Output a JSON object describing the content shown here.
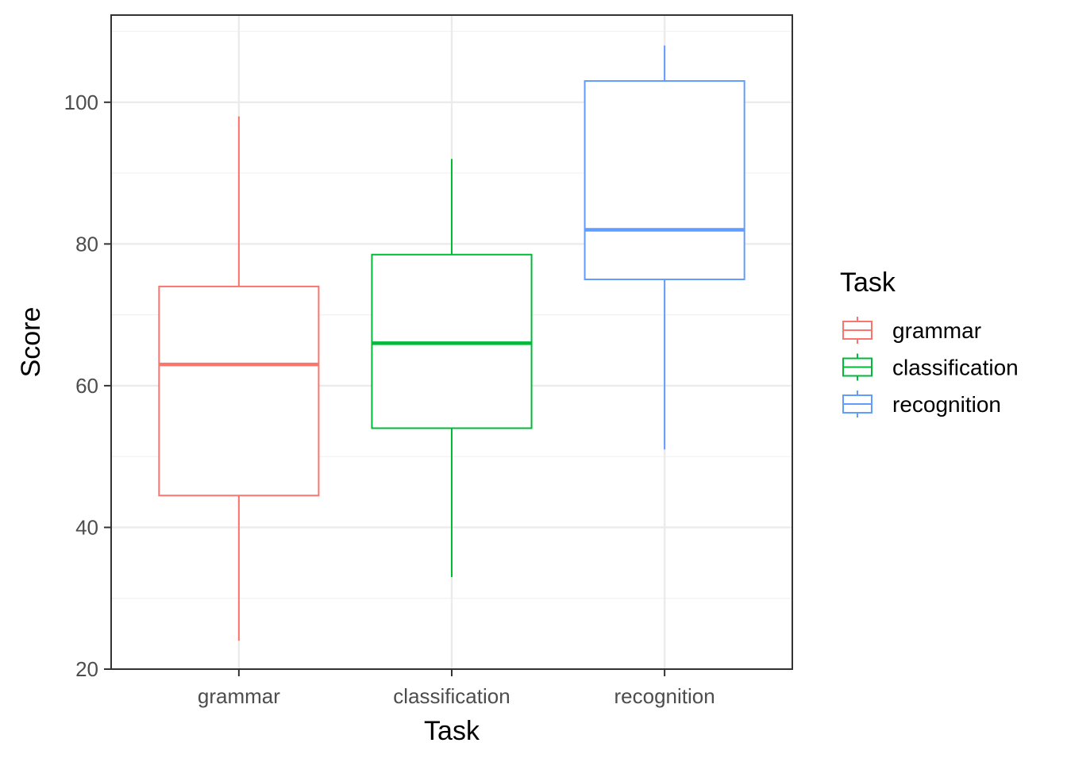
{
  "chart_data": {
    "type": "boxplot",
    "xlabel": "Task",
    "ylabel": "Score",
    "ylim": [
      20,
      112.3
    ],
    "yticks": [
      20,
      40,
      60,
      80,
      100
    ],
    "grid": true,
    "legend": {
      "title": "Task",
      "placement": "right"
    },
    "categories": [
      "grammar",
      "classification",
      "recognition"
    ],
    "series": [
      {
        "name": "grammar",
        "color": "#F8766D",
        "min": 24,
        "q1": 44.5,
        "median": 63,
        "q3": 74,
        "max": 98
      },
      {
        "name": "classification",
        "color": "#00BA38",
        "min": 33,
        "q1": 54,
        "median": 66,
        "q3": 78.5,
        "max": 92
      },
      {
        "name": "recognition",
        "color": "#619CFF",
        "min": 51,
        "q1": 75,
        "median": 82,
        "q3": 103,
        "max": 108
      }
    ]
  }
}
